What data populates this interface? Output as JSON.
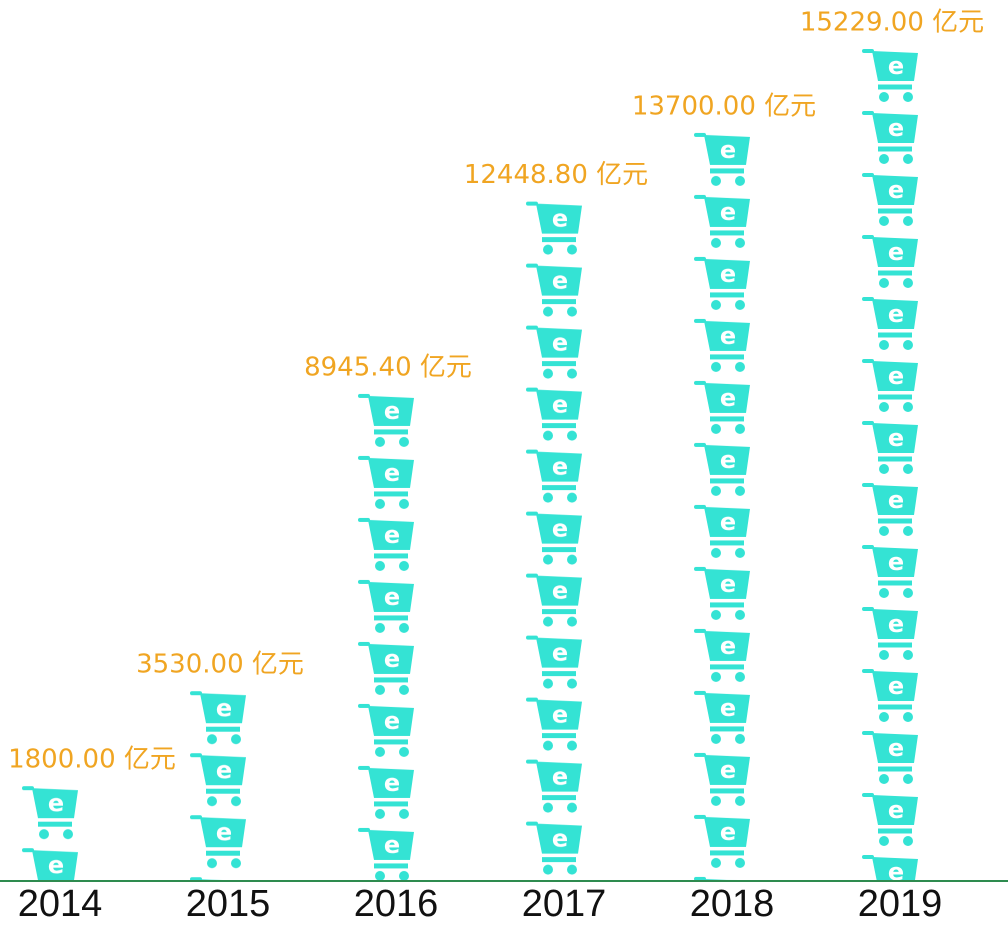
{
  "chart_data": {
    "type": "pictograph",
    "categories": [
      "2014",
      "2015",
      "2016",
      "2017",
      "2018",
      "2019"
    ],
    "values": [
      1800,
      3530,
      8945.4,
      12448.8,
      13700,
      15229
    ],
    "value_labels": [
      "1800.00 亿元",
      "3530.00 亿元",
      "8945.40 亿元",
      "12448.80 亿元",
      "13700.00 亿元",
      "15229.00 亿元"
    ],
    "color": "#34e3d4",
    "label_color": "#f0a522",
    "baseline_color": "#2e8b4f"
  }
}
